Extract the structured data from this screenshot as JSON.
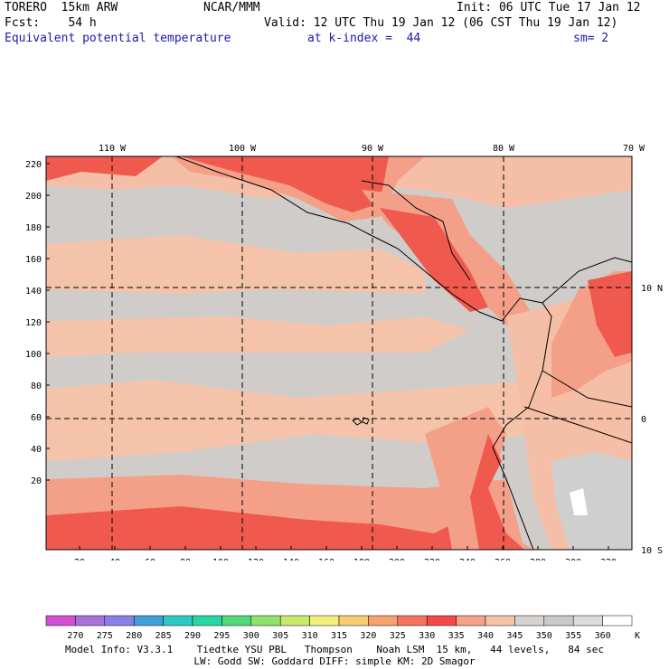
{
  "header": {
    "model": "TORERO  15km ARW",
    "center": "NCAR/MMM",
    "init": "Init: 06 UTC Tue 17 Jan 12",
    "forecast": "Fcst:    54 h",
    "valid": "Valid: 12 UTC Thu 19 Jan 12 (06 CST Thu 19 Jan 12)",
    "field": "Equivalent potential temperature",
    "level": "at k-index =  44",
    "smoothing": "sm= 2"
  },
  "map": {
    "lon_labels": [
      "110 W",
      "100 W",
      "90 W",
      "80 W",
      "70 W"
    ],
    "lat_labels": [
      "10 N",
      "0",
      "10 S"
    ],
    "y_ticks": [
      "220",
      "200",
      "180",
      "160",
      "140",
      "120",
      "100",
      "80",
      "60",
      "40",
      "20"
    ],
    "x_ticks": [
      "20",
      "40",
      "60",
      "80",
      "100",
      "120",
      "140",
      "160",
      "180",
      "200",
      "220",
      "240",
      "260",
      "280",
      "300",
      "320"
    ]
  },
  "colorbar": {
    "values": [
      "270",
      "275",
      "280",
      "285",
      "290",
      "295",
      "300",
      "305",
      "310",
      "315",
      "320",
      "325",
      "330",
      "335",
      "340",
      "345",
      "350",
      "355",
      "360"
    ],
    "unit": "K",
    "colors": [
      "#d24fd2",
      "#a873d8",
      "#8a80e8",
      "#3f9fd6",
      "#2fc9c3",
      "#2ad6a4",
      "#52d97a",
      "#8ee36b",
      "#c9e96a",
      "#f3f07a",
      "#f7cc72",
      "#f5a36f",
      "#f5735f",
      "#f24a4a",
      "#f4a08b",
      "#f5c3aa",
      "#d6d2cf",
      "#c9c9c9",
      "#dcdcdc",
      "#ffffff"
    ]
  },
  "footer": {
    "line1": "Model Info: V3.3.1    Tiedtke YSU PBL   Thompson    Noah LSM  15 km,   44 levels,   84 sec",
    "line2": "LW: Godd SW: Goddard DIFF: simple KM: 2D Smagor"
  }
}
